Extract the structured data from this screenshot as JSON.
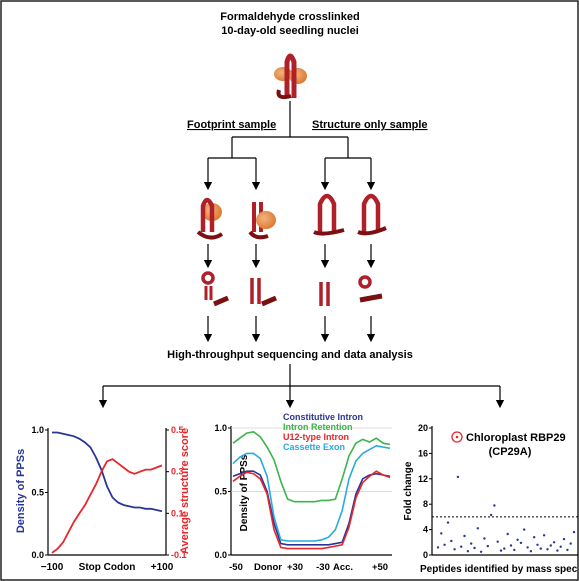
{
  "workflow": {
    "title_line1": "Formaldehyde crosslinked",
    "title_line2": "10-day-old seedling nuclei",
    "left_branch": "Footprint sample",
    "right_branch": "Structure only sample",
    "sequencing": "High-throughput sequencing and data analysis"
  },
  "colors": {
    "rna": "#b0202a",
    "rna_dark": "#7a1012",
    "protein": "#e8904a",
    "blue": "#2b3595",
    "red": "#e8262c",
    "green": "#3ab54a",
    "cyan": "#29a9e0",
    "grid": "#d0d0d0"
  },
  "chart_data": [
    {
      "type": "line",
      "ylabel": "Density of PPSs",
      "ylabel_right": "Average structure score",
      "xlabel": "Stop Codon",
      "x_ticks": [
        "−100",
        "+100"
      ],
      "ylim": [
        0.0,
        1.0
      ],
      "yticks": [
        "0.0",
        "0.5",
        "1.0"
      ],
      "ylim_right": [
        -0.1,
        0.5
      ],
      "yticks_right": [
        "-0.1",
        "0.1",
        "0.3",
        "0.5"
      ],
      "x": [
        -100,
        -90,
        -80,
        -70,
        -60,
        -50,
        -40,
        -30,
        -20,
        -10,
        0,
        10,
        20,
        30,
        40,
        50,
        60,
        70,
        80,
        90,
        100
      ],
      "series": [
        {
          "axis": "left",
          "color": "#2b3595",
          "values": [
            0.98,
            0.98,
            0.97,
            0.96,
            0.95,
            0.93,
            0.9,
            0.86,
            0.78,
            0.68,
            0.55,
            0.46,
            0.42,
            0.4,
            0.39,
            0.38,
            0.38,
            0.37,
            0.37,
            0.36,
            0.35
          ]
        },
        {
          "axis": "right",
          "color": "#e8262c",
          "values": [
            -0.09,
            -0.07,
            -0.04,
            0.01,
            0.06,
            0.1,
            0.14,
            0.19,
            0.24,
            0.3,
            0.35,
            0.36,
            0.34,
            0.32,
            0.3,
            0.29,
            0.3,
            0.31,
            0.31,
            0.32,
            0.33
          ]
        }
      ]
    },
    {
      "type": "line",
      "ylabel": "Density of PPSs",
      "ylim": [
        0.0,
        1.0
      ],
      "yticks": [
        "0.0",
        "0.5",
        "1.0"
      ],
      "x_ticks": [
        "-50",
        "Donor",
        "+30",
        "-30",
        "Acc.",
        "+50"
      ],
      "x": [
        0,
        1,
        2,
        3,
        4,
        5,
        6,
        7,
        8,
        9,
        10,
        11,
        12,
        13,
        14,
        15,
        16,
        17,
        18,
        19,
        20,
        21,
        22,
        23
      ],
      "series": [
        {
          "name": "Constitutive Intron",
          "color": "#2b3595",
          "values": [
            0.62,
            0.64,
            0.66,
            0.66,
            0.63,
            0.5,
            0.25,
            0.09,
            0.08,
            0.08,
            0.08,
            0.08,
            0.08,
            0.08,
            0.08,
            0.09,
            0.1,
            0.25,
            0.48,
            0.6,
            0.63,
            0.64,
            0.63,
            0.62
          ]
        },
        {
          "name": "Intron Retention",
          "color": "#3ab54a",
          "values": [
            0.88,
            0.92,
            0.96,
            0.97,
            0.93,
            0.85,
            0.75,
            0.58,
            0.44,
            0.42,
            0.42,
            0.42,
            0.42,
            0.43,
            0.43,
            0.44,
            0.6,
            0.78,
            0.88,
            0.91,
            0.89,
            0.92,
            0.88,
            0.87
          ]
        },
        {
          "name": "U12-type Intron",
          "color": "#e8262c",
          "values": [
            0.58,
            0.62,
            0.65,
            0.64,
            0.6,
            0.48,
            0.2,
            0.06,
            0.05,
            0.05,
            0.05,
            0.05,
            0.05,
            0.05,
            0.06,
            0.07,
            0.08,
            0.22,
            0.45,
            0.57,
            0.62,
            0.66,
            0.63,
            0.61
          ]
        },
        {
          "name": "Cassette Exon",
          "color": "#29a9e0",
          "values": [
            0.72,
            0.77,
            0.8,
            0.8,
            0.76,
            0.62,
            0.3,
            0.12,
            0.11,
            0.11,
            0.11,
            0.11,
            0.11,
            0.12,
            0.14,
            0.2,
            0.35,
            0.6,
            0.74,
            0.8,
            0.83,
            0.86,
            0.85,
            0.84
          ]
        }
      ]
    },
    {
      "type": "scatter",
      "ylabel": "Fold change",
      "xlabel": "Peptides identified by mass spec",
      "ylim": [
        0,
        20
      ],
      "yticks": [
        "0",
        "4",
        "8",
        "12",
        "16",
        "20"
      ],
      "annotation_line1": "Chloroplast RBP29",
      "annotation_line2": "(CP29A)",
      "threshold": 6,
      "x": [
        1,
        2,
        3,
        4,
        5,
        6,
        7,
        8,
        9,
        10,
        11,
        12,
        13,
        14,
        15,
        16,
        17,
        18,
        19,
        20,
        21,
        22,
        23,
        24,
        25,
        26,
        27,
        28,
        29,
        30,
        31,
        32,
        33,
        34,
        35,
        36,
        37,
        38,
        39,
        40,
        41,
        42
      ],
      "values": [
        1.2,
        3.4,
        1.6,
        5.1,
        2.2,
        0.9,
        12.3,
        1.3,
        3.0,
        0.6,
        1.8,
        1.1,
        4.2,
        0.5,
        2.6,
        1.4,
        6.3,
        7.8,
        2.1,
        0.7,
        1.0,
        3.3,
        1.5,
        0.8,
        2.4,
        1.9,
        4.0,
        1.2,
        0.6,
        2.8,
        1.6,
        1.0,
        3.1,
        0.9,
        1.5,
        2.0,
        0.7,
        1.3,
        2.5,
        0.8,
        1.8,
        3.6
      ]
    }
  ]
}
